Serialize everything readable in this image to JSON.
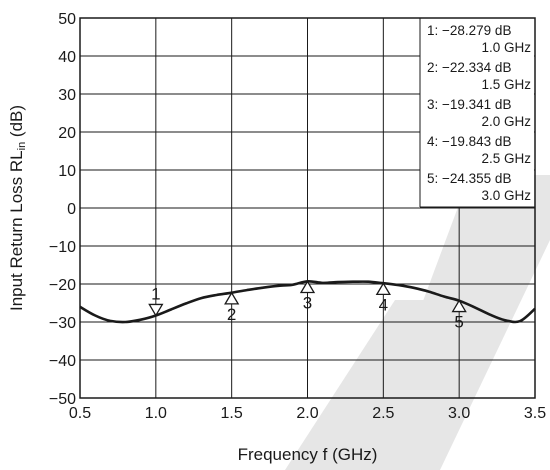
{
  "chart_data": {
    "type": "line",
    "xlabel": "Frequency  f (GHz)",
    "ylabel_main": "Input Return Loss  RL",
    "ylabel_sub": "in",
    "ylabel_unit": " (dB)",
    "xlim": [
      0.5,
      3.5
    ],
    "ylim": [
      -50,
      50
    ],
    "x_ticks": [
      0.5,
      1.0,
      1.5,
      2.0,
      2.5,
      3.0,
      3.5
    ],
    "x_tick_labels": [
      "0.5",
      "1.0",
      "1.5",
      "2.0",
      "2.5",
      "3.0",
      "3.5"
    ],
    "y_ticks": [
      50,
      40,
      30,
      20,
      10,
      0,
      -10,
      -20,
      -30,
      -40,
      -50
    ],
    "y_tick_labels": [
      "50",
      "40",
      "30",
      "20",
      "10",
      "0",
      "−10",
      "−20",
      "−30",
      "−40",
      "−50"
    ],
    "grid": true,
    "series": [
      {
        "x": [
          0.5,
          0.6,
          0.7,
          0.8,
          0.9,
          1.0,
          1.1,
          1.2,
          1.3,
          1.4,
          1.5,
          1.6,
          1.7,
          1.8,
          1.9,
          2.0,
          2.1,
          2.2,
          2.3,
          2.4,
          2.5,
          2.6,
          2.7,
          2.8,
          2.9,
          3.0,
          3.1,
          3.2,
          3.3,
          3.4,
          3.5
        ],
        "y": [
          -26.0,
          -28.3,
          -29.7,
          -30.0,
          -29.4,
          -28.3,
          -26.7,
          -25.1,
          -23.7,
          -22.9,
          -22.3,
          -21.6,
          -21.0,
          -20.5,
          -20.2,
          -19.3,
          -19.7,
          -19.5,
          -19.4,
          -19.4,
          -19.8,
          -20.3,
          -21.0,
          -22.0,
          -23.3,
          -24.4,
          -26.1,
          -28.0,
          -29.5,
          -29.8,
          -26.5
        ]
      }
    ],
    "markers": [
      {
        "id": "1",
        "x": 1.0,
        "y": -28.279,
        "direction": "down",
        "label_pos": "above"
      },
      {
        "id": "2",
        "x": 1.5,
        "y": -22.334,
        "direction": "up",
        "label_pos": "below"
      },
      {
        "id": "3",
        "x": 2.0,
        "y": -19.341,
        "direction": "up",
        "label_pos": "below"
      },
      {
        "id": "4",
        "x": 2.5,
        "y": -19.843,
        "direction": "up",
        "label_pos": "below"
      },
      {
        "id": "5",
        "x": 3.0,
        "y": -24.355,
        "direction": "up",
        "label_pos": "below"
      }
    ],
    "legend": {
      "placement": "top-right",
      "entries": [
        {
          "line1": "1: −28.279 dB",
          "line2": "1.0 GHz"
        },
        {
          "line1": "2: −22.334 dB",
          "line2": "1.5 GHz"
        },
        {
          "line1": "3: −19.341 dB",
          "line2": "2.0 GHz"
        },
        {
          "line1": "4: −19.843 dB",
          "line2": "2.5 GHz"
        },
        {
          "line1": "5: −24.355 dB",
          "line2": "3.0 GHz"
        }
      ]
    },
    "colors": {
      "line": "#1a1a1a",
      "grid": "#1a1a1a",
      "watermark": "#e6e6e6"
    }
  }
}
